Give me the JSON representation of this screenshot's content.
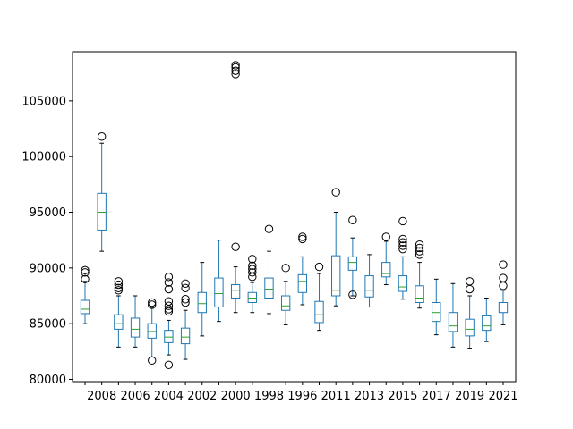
{
  "chart_data": {
    "type": "box",
    "title": "",
    "xlabel": "",
    "ylabel": "",
    "ylim": [
      79800,
      109400
    ],
    "yticks": [
      80000,
      85000,
      90000,
      95000,
      100000,
      105000
    ],
    "ytick_labels": [
      "80000",
      "85000",
      "90000",
      "95000",
      "100000",
      "105000"
    ],
    "xtick_labels": [
      "2008",
      "2006",
      "2004",
      "2002",
      "2000",
      "1998",
      "1996",
      "2011",
      "2013",
      "2015",
      "2017",
      "2019",
      "2021"
    ],
    "grid": false,
    "box_color": "#1f77b4",
    "median_color": "#2ca02c",
    "boxes": [
      {
        "whislo": 85000,
        "q1": 85900,
        "med": 86300,
        "q3": 87100,
        "whishi": 88800,
        "fliers": [
          89000,
          89600,
          89800
        ]
      },
      {
        "whislo": 91500,
        "q1": 93400,
        "med": 95000,
        "q3": 96700,
        "whishi": 101200,
        "fliers": [
          101800
        ]
      },
      {
        "whislo": 82900,
        "q1": 84500,
        "med": 85000,
        "q3": 85800,
        "whishi": 87500,
        "fliers": [
          88000,
          88200,
          88500,
          88800
        ]
      },
      {
        "whislo": 82900,
        "q1": 83800,
        "med": 84500,
        "q3": 85500,
        "whishi": 87500,
        "fliers": []
      },
      {
        "whislo": 82000,
        "q1": 83700,
        "med": 84300,
        "q3": 85000,
        "whishi": 86400,
        "fliers": [
          81700,
          86700,
          86900
        ]
      },
      {
        "whislo": 82200,
        "q1": 83300,
        "med": 83800,
        "q3": 84400,
        "whishi": 85300,
        "fliers": [
          81300,
          86100,
          86300,
          86600,
          87000,
          88100,
          88700,
          89200
        ]
      },
      {
        "whislo": 81800,
        "q1": 83200,
        "med": 83800,
        "q3": 84600,
        "whishi": 86200,
        "fliers": [
          86900,
          87200,
          88200,
          88600
        ]
      },
      {
        "whislo": 83900,
        "q1": 86000,
        "med": 86800,
        "q3": 87800,
        "whishi": 90500,
        "fliers": []
      },
      {
        "whislo": 85200,
        "q1": 86500,
        "med": 87700,
        "q3": 89100,
        "whishi": 92500,
        "fliers": []
      },
      {
        "whislo": 86000,
        "q1": 87300,
        "med": 88000,
        "q3": 88500,
        "whishi": 90100,
        "fliers": [
          91900,
          107400,
          107700,
          108000,
          108200
        ]
      },
      {
        "whislo": 86000,
        "q1": 86900,
        "med": 87300,
        "q3": 87800,
        "whishi": 88700,
        "fliers": [
          89200,
          89600,
          89900,
          90200,
          90800
        ]
      },
      {
        "whislo": 85900,
        "q1": 87300,
        "med": 88100,
        "q3": 89100,
        "whishi": 91500,
        "fliers": [
          93500
        ]
      },
      {
        "whislo": 84900,
        "q1": 86200,
        "med": 86600,
        "q3": 87500,
        "whishi": 88800,
        "fliers": [
          90000
        ]
      },
      {
        "whislo": 86700,
        "q1": 87800,
        "med": 88800,
        "q3": 89400,
        "whishi": 91000,
        "fliers": [
          92600,
          92800
        ]
      },
      {
        "whislo": 84400,
        "q1": 85100,
        "med": 85800,
        "q3": 87000,
        "whishi": 89500,
        "fliers": [
          90100
        ]
      },
      {
        "whislo": 86600,
        "q1": 87500,
        "med": 88000,
        "q3": 91100,
        "whishi": 95000,
        "fliers": [
          96800
        ]
      },
      {
        "whislo": 87500,
        "q1": 89800,
        "med": 90500,
        "q3": 91000,
        "whishi": 92700,
        "fliers": [
          87600,
          94300
        ]
      },
      {
        "whislo": 86500,
        "q1": 87400,
        "med": 88000,
        "q3": 89300,
        "whishi": 91200,
        "fliers": []
      },
      {
        "whislo": 88500,
        "q1": 89200,
        "med": 89500,
        "q3": 90500,
        "whishi": 92400,
        "fliers": [
          92800
        ]
      },
      {
        "whislo": 87200,
        "q1": 87900,
        "med": 88300,
        "q3": 89300,
        "whishi": 91000,
        "fliers": [
          91700,
          92000,
          92300,
          92600,
          94200
        ]
      },
      {
        "whislo": 86400,
        "q1": 86900,
        "med": 87300,
        "q3": 88400,
        "whishi": 90500,
        "fliers": [
          91200,
          91500,
          91800,
          92100
        ]
      },
      {
        "whislo": 84000,
        "q1": 85200,
        "med": 86000,
        "q3": 86900,
        "whishi": 89000,
        "fliers": []
      },
      {
        "whislo": 82900,
        "q1": 84300,
        "med": 84800,
        "q3": 86000,
        "whishi": 88600,
        "fliers": []
      },
      {
        "whislo": 82800,
        "q1": 83900,
        "med": 84500,
        "q3": 85400,
        "whishi": 87500,
        "fliers": [
          88100,
          88800
        ]
      },
      {
        "whislo": 83400,
        "q1": 84400,
        "med": 84800,
        "q3": 85700,
        "whishi": 87300,
        "fliers": []
      },
      {
        "whislo": 84900,
        "q1": 86000,
        "med": 86500,
        "q3": 86900,
        "whishi": 88000,
        "fliers": [
          88400,
          89100,
          90300
        ]
      }
    ]
  }
}
